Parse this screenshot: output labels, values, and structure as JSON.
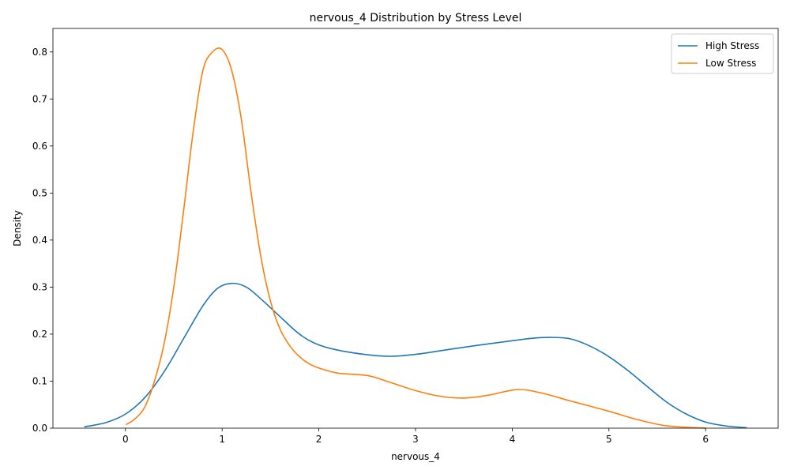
{
  "chart_data": {
    "type": "line",
    "title": "nervous_4 Distribution by Stress Level",
    "xlabel": "nervous_4",
    "ylabel": "Density",
    "xlim": [
      -0.75,
      6.75
    ],
    "ylim": [
      0,
      0.85
    ],
    "xticks": [
      0,
      1,
      2,
      3,
      4,
      5,
      6
    ],
    "yticks": [
      0.0,
      0.1,
      0.2,
      0.3,
      0.4,
      0.5,
      0.6,
      0.7,
      0.8
    ],
    "ytick_labels": [
      "0.0",
      "0.1",
      "0.2",
      "0.3",
      "0.4",
      "0.5",
      "0.6",
      "0.7",
      "0.8"
    ],
    "grid": false,
    "legend": "top-right",
    "series": [
      {
        "name": "High Stress",
        "color": "#1f77b4",
        "x": [
          -0.42,
          -0.2,
          0.0,
          0.2,
          0.4,
          0.6,
          0.8,
          0.95,
          1.1,
          1.25,
          1.4,
          1.6,
          1.8,
          2.0,
          2.3,
          2.7,
          3.0,
          3.3,
          3.6,
          4.0,
          4.2,
          4.4,
          4.6,
          4.8,
          5.0,
          5.2,
          5.4,
          5.6,
          5.8,
          6.0,
          6.2,
          6.42
        ],
        "y": [
          0.003,
          0.012,
          0.03,
          0.065,
          0.12,
          0.19,
          0.26,
          0.297,
          0.308,
          0.3,
          0.275,
          0.237,
          0.2,
          0.177,
          0.162,
          0.153,
          0.157,
          0.166,
          0.175,
          0.186,
          0.191,
          0.193,
          0.19,
          0.175,
          0.152,
          0.122,
          0.088,
          0.055,
          0.03,
          0.013,
          0.005,
          0.001
        ]
      },
      {
        "name": "Low Stress",
        "color": "#ff7f0e",
        "x": [
          0.01,
          0.1,
          0.2,
          0.3,
          0.4,
          0.5,
          0.6,
          0.7,
          0.8,
          0.9,
          1.0,
          1.1,
          1.2,
          1.3,
          1.4,
          1.5,
          1.6,
          1.7,
          1.8,
          1.9,
          2.0,
          2.2,
          2.5,
          2.7,
          3.0,
          3.25,
          3.5,
          3.75,
          4.05,
          4.3,
          4.6,
          5.0,
          5.3,
          5.6,
          6.0
        ],
        "y": [
          0.008,
          0.02,
          0.045,
          0.1,
          0.18,
          0.3,
          0.46,
          0.63,
          0.76,
          0.8,
          0.805,
          0.76,
          0.655,
          0.5,
          0.365,
          0.27,
          0.21,
          0.175,
          0.152,
          0.137,
          0.128,
          0.117,
          0.112,
          0.1,
          0.08,
          0.068,
          0.064,
          0.07,
          0.082,
          0.075,
          0.058,
          0.036,
          0.018,
          0.005,
          0.0
        ]
      }
    ]
  }
}
